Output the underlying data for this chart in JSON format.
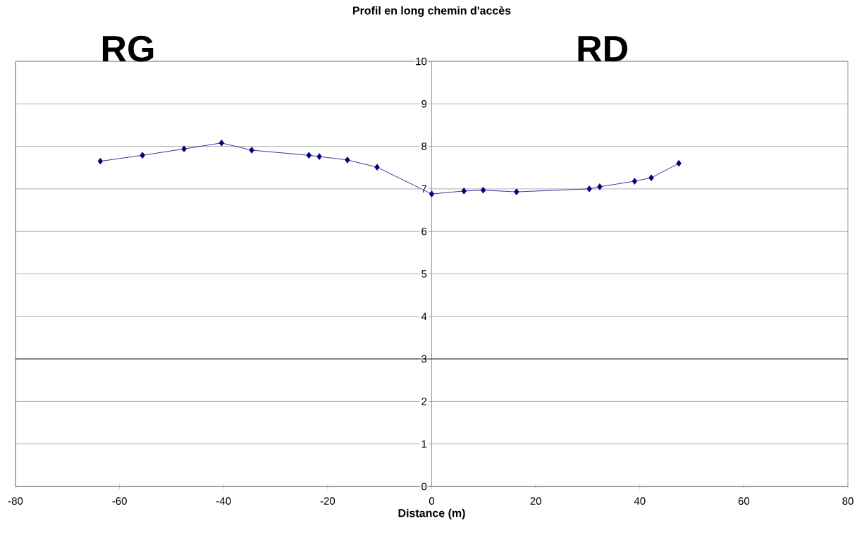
{
  "chart_data": {
    "type": "line",
    "title": "Profil en long chemin d'accès",
    "xlabel": "Distance (m)",
    "annotations": [
      "RG",
      "RD"
    ],
    "x": [
      -63.7,
      -55.6,
      -47.6,
      -40.4,
      -34.6,
      -23.6,
      -21.6,
      -16.2,
      -10.5,
      0,
      6.2,
      9.9,
      16.3,
      30.3,
      32.3,
      39.0,
      42.2,
      47.5
    ],
    "series": [
      {
        "color": "#000080",
        "values": [
          7.65,
          7.79,
          7.94,
          8.08,
          7.91,
          7.79,
          7.76,
          7.68,
          7.51,
          6.88,
          6.95,
          6.97,
          6.93,
          7.0,
          7.05,
          7.18,
          7.26,
          7.6
        ]
      }
    ],
    "xlim": [
      -80,
      80
    ],
    "xticks": [
      -80,
      -60,
      -40,
      -20,
      0,
      20,
      40,
      60,
      80
    ],
    "ylim": [
      0,
      10
    ],
    "yticks": [
      0,
      1,
      2,
      3,
      4,
      5,
      6,
      7,
      8,
      9,
      10
    ],
    "ref_lines": [
      {
        "axis": "y",
        "value": 3,
        "color": "#000000"
      }
    ],
    "grid": "y",
    "marker": "diamond",
    "line_style": "solid"
  }
}
